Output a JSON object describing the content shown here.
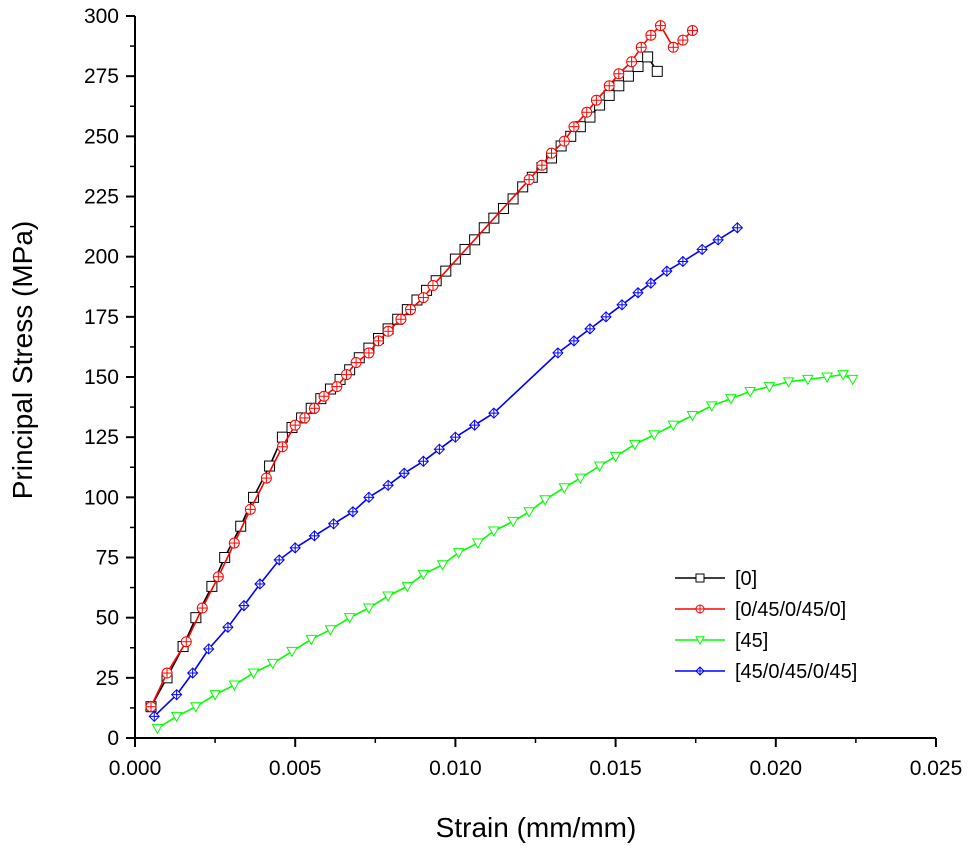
{
  "chart_data": {
    "type": "line",
    "xlabel": "Strain (mm/mm)",
    "ylabel": "Principal Stress (MPa)",
    "xlim": [
      0,
      0.025
    ],
    "ylim": [
      0,
      300
    ],
    "x_ticks": [
      "0.000",
      "0.005",
      "0.010",
      "0.015",
      "0.020",
      "0.025"
    ],
    "y_ticks": [
      "0",
      "25",
      "50",
      "75",
      "100",
      "125",
      "150",
      "175",
      "200",
      "225",
      "250",
      "275",
      "300"
    ],
    "grid": false,
    "legend_position": "bottom-right",
    "series": [
      {
        "name": "[0]",
        "color": "#000000",
        "marker": "square",
        "x": [
          0.0005,
          0.001,
          0.0015,
          0.0019,
          0.0024,
          0.0028,
          0.0033,
          0.0037,
          0.0042,
          0.0046,
          0.0049,
          0.0052,
          0.0055,
          0.0058,
          0.0061,
          0.0064,
          0.0067,
          0.007,
          0.0073,
          0.0076,
          0.0079,
          0.0082,
          0.0085,
          0.0088,
          0.0091,
          0.0094,
          0.0097,
          0.01,
          0.0103,
          0.0106,
          0.0109,
          0.0112,
          0.0115,
          0.0118,
          0.0121,
          0.0124,
          0.0127,
          0.013,
          0.0133,
          0.0136,
          0.0139,
          0.0142,
          0.0145,
          0.0148,
          0.0151,
          0.0154,
          0.0157,
          0.016,
          0.0163
        ],
        "y": [
          13,
          25,
          38,
          50,
          63,
          75,
          88,
          100,
          113,
          125,
          129,
          133,
          137,
          141,
          145,
          149,
          153,
          158,
          162,
          166,
          170,
          174,
          178,
          182,
          186,
          190,
          194,
          199,
          203,
          207,
          212,
          216,
          220,
          224,
          229,
          233,
          237,
          241,
          246,
          250,
          254,
          258,
          263,
          267,
          271,
          275,
          279,
          283,
          277
        ]
      },
      {
        "name": "[0/45/0/45/0]",
        "color": "#ff0000",
        "marker": "circle",
        "x": [
          0.0005,
          0.001,
          0.0016,
          0.0021,
          0.0026,
          0.0031,
          0.0036,
          0.0041,
          0.0046,
          0.005,
          0.0053,
          0.0056,
          0.0059,
          0.0063,
          0.0066,
          0.0069,
          0.0073,
          0.0076,
          0.0079,
          0.0083,
          0.0086,
          0.009,
          0.0093,
          0.0123,
          0.0127,
          0.013,
          0.0134,
          0.0137,
          0.0141,
          0.0144,
          0.0148,
          0.0151,
          0.0155,
          0.0158,
          0.0161,
          0.0164,
          0.0168,
          0.0171,
          0.0174
        ],
        "y": [
          13,
          27,
          40,
          54,
          67,
          81,
          95,
          108,
          121,
          130,
          133,
          137,
          142,
          146,
          151,
          156,
          160,
          165,
          169,
          174,
          178,
          183,
          188,
          232,
          238,
          243,
          248,
          254,
          260,
          265,
          271,
          276,
          281,
          287,
          292,
          296,
          287,
          290,
          294
        ]
      },
      {
        "name": "[45]",
        "color": "#00ff00",
        "marker": "triangle-down",
        "x": [
          0.0007,
          0.0013,
          0.0019,
          0.0025,
          0.0031,
          0.0037,
          0.0043,
          0.0049,
          0.0055,
          0.0061,
          0.0067,
          0.0073,
          0.0079,
          0.0085,
          0.009,
          0.0096,
          0.0101,
          0.0107,
          0.0112,
          0.0118,
          0.0123,
          0.0128,
          0.0134,
          0.0139,
          0.0145,
          0.015,
          0.0156,
          0.0162,
          0.0168,
          0.0174,
          0.018,
          0.0186,
          0.0192,
          0.0198,
          0.0204,
          0.021,
          0.0216,
          0.0221,
          0.0224
        ],
        "y": [
          4,
          9,
          13,
          18,
          22,
          27,
          31,
          36,
          41,
          45,
          50,
          54,
          59,
          63,
          68,
          72,
          77,
          81,
          86,
          90,
          94,
          99,
          104,
          108,
          113,
          117,
          122,
          126,
          130,
          134,
          138,
          141,
          144,
          146,
          148,
          149,
          150,
          151,
          149
        ]
      },
      {
        "name": "[45/0/45/0/45]",
        "color": "#0000ff",
        "marker": "diamond",
        "x": [
          0.0006,
          0.0013,
          0.0018,
          0.0023,
          0.0029,
          0.0034,
          0.0039,
          0.0045,
          0.005,
          0.0056,
          0.0062,
          0.0068,
          0.0073,
          0.0079,
          0.0084,
          0.009,
          0.0095,
          0.01,
          0.0106,
          0.0112,
          0.0132,
          0.0137,
          0.0142,
          0.0147,
          0.0152,
          0.0157,
          0.0161,
          0.0166,
          0.0171,
          0.0177,
          0.0182,
          0.0188
        ],
        "y": [
          9,
          18,
          27,
          37,
          46,
          55,
          64,
          74,
          79,
          84,
          89,
          94,
          100,
          105,
          110,
          115,
          120,
          125,
          130,
          135,
          160,
          165,
          170,
          175,
          180,
          185,
          189,
          194,
          198,
          203,
          207,
          212
        ]
      }
    ]
  }
}
